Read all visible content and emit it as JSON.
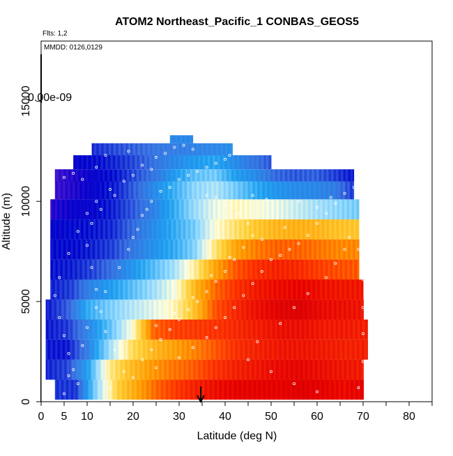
{
  "chart_data": {
    "type": "heatmap",
    "title": "ATOM2 Northeast_Pacific_1 CONBAS_GEOS5",
    "annotations": {
      "flights": "Flts: 1,2",
      "dates": "MMDD: 0126,0129",
      "colorbar_label": "0.00e-09"
    },
    "xlabel": "Latitude (deg N)",
    "ylabel": "Altitude (m)",
    "xlim": [
      0,
      85
    ],
    "ylim": [
      0,
      18000
    ],
    "x_ticks": [
      0,
      5,
      10,
      20,
      30,
      40,
      50,
      60,
      70,
      80
    ],
    "x_minor_ticks": [
      0,
      5,
      10,
      15,
      20,
      25,
      30,
      35,
      40,
      45,
      50,
      55,
      60,
      65,
      70,
      75,
      80,
      85
    ],
    "y_ticks": [
      0,
      5000,
      10000,
      15000
    ],
    "grid": false,
    "marker_latitude": 34.7,
    "color_scale": [
      "#6a1fd0",
      "#0000cc",
      "#3a6fe0",
      "#1ea0f0",
      "#8fd8ff",
      "#ffffe0",
      "#ffd23c",
      "#ff9a00",
      "#ff3c00",
      "#e60000",
      "#b40000"
    ],
    "rows": [
      {
        "alt": [
          100,
          1100
        ],
        "lat": [
          3,
          70
        ],
        "v": [
          1.5,
          1.5,
          4.0,
          6.0,
          6.8,
          7.6,
          8.1,
          8.5,
          8.8,
          9.0,
          9.0,
          9.0,
          9.1,
          9.0,
          8.8,
          9.0
        ]
      },
      {
        "alt": [
          1100,
          2100
        ],
        "lat": [
          1,
          70
        ],
        "v": [
          1.3,
          1.6,
          3.0,
          5.5,
          6.4,
          7.0,
          7.4,
          7.7,
          8.2,
          8.5,
          8.7,
          8.9,
          9.0,
          8.8,
          8.7,
          8.6
        ]
      },
      {
        "alt": [
          2100,
          3100
        ],
        "lat": [
          1,
          71
        ],
        "v": [
          1.2,
          1.2,
          2.4,
          4.2,
          5.8,
          6.5,
          6.9,
          7.3,
          7.8,
          8.3,
          8.5,
          8.7,
          8.7,
          8.6,
          8.5,
          8.5
        ]
      },
      {
        "alt": [
          3100,
          4100
        ],
        "lat": [
          1,
          71
        ],
        "v": [
          1.2,
          1.5,
          2.5,
          3.6,
          5.0,
          7.6,
          8.0,
          8.1,
          8.2,
          8.4,
          8.6,
          8.8,
          8.8,
          8.6,
          8.6,
          8.5
        ]
      },
      {
        "alt": [
          4100,
          5100
        ],
        "lat": [
          1,
          70
        ],
        "v": [
          1.2,
          1.8,
          3.2,
          3.8,
          4.3,
          4.7,
          5.2,
          6.3,
          7.8,
          8.4,
          8.8,
          9.1,
          9.2,
          8.9,
          8.8,
          8.7
        ]
      },
      {
        "alt": [
          5100,
          6100
        ],
        "lat": [
          2,
          70
        ],
        "v": [
          1.3,
          1.6,
          2.5,
          3.0,
          3.6,
          4.2,
          5.0,
          6.6,
          7.6,
          8.2,
          8.6,
          8.8,
          8.9,
          8.7,
          8.6,
          8.6
        ]
      },
      {
        "alt": [
          6100,
          7100
        ],
        "lat": [
          2,
          69
        ],
        "v": [
          1.2,
          1.3,
          1.6,
          2.1,
          2.8,
          3.5,
          4.2,
          5.4,
          6.8,
          7.7,
          8.2,
          8.4,
          8.3,
          8.0,
          7.8,
          7.7
        ]
      },
      {
        "alt": [
          7100,
          8100
        ],
        "lat": [
          2,
          69
        ],
        "v": [
          1.1,
          1.1,
          1.3,
          1.6,
          2.2,
          2.7,
          3.2,
          3.9,
          5.6,
          6.8,
          7.3,
          7.6,
          7.6,
          7.4,
          7.2,
          7.2
        ]
      },
      {
        "alt": [
          8100,
          9100
        ],
        "lat": [
          2,
          69
        ],
        "v": [
          1.0,
          1.1,
          1.2,
          1.4,
          2.0,
          2.6,
          3.2,
          3.8,
          5.0,
          5.7,
          6.2,
          6.5,
          6.6,
          6.5,
          6.3,
          6.2
        ]
      },
      {
        "alt": [
          9100,
          10100
        ],
        "lat": [
          2,
          69
        ],
        "v": [
          0.6,
          0.9,
          1.0,
          1.3,
          1.8,
          2.4,
          3.2,
          4.1,
          4.8,
          5.2,
          5.0,
          4.8,
          4.5,
          4.2,
          4.0,
          3.8
        ]
      },
      {
        "alt": [
          10100,
          11000
        ],
        "lat": [
          3,
          68
        ],
        "v": [
          0.4,
          0.7,
          1.0,
          1.3,
          1.9,
          2.6,
          3.3,
          4.0,
          4.3,
          3.8,
          3.2,
          2.8,
          2.6,
          2.5,
          2.3,
          1.5
        ]
      },
      {
        "alt": [
          11000,
          11600
        ],
        "lat": [
          3,
          68
        ],
        "v": [
          0.4,
          0.7,
          1.0,
          1.2,
          1.7,
          2.2,
          2.9,
          3.6,
          3.8,
          3.0,
          2.6,
          2.0,
          1.8,
          1.9,
          1.6,
          1.2
        ]
      },
      {
        "alt": [
          11600,
          12300
        ],
        "lat": [
          7,
          50
        ],
        "v": [
          1.0,
          1.2,
          1.6,
          2.2,
          2.8,
          3.1,
          2.4,
          1.8
        ]
      },
      {
        "alt": [
          12300,
          12900
        ],
        "lat": [
          11,
          41.5
        ],
        "v": [
          1.4,
          1.8,
          2.2,
          2.4,
          2.6
        ]
      },
      {
        "alt": [
          12900,
          13300
        ],
        "lat": [
          28,
          33
        ],
        "v": [
          2.5
        ]
      }
    ],
    "observation_points": [
      [
        5,
        400
      ],
      [
        6,
        1300
      ],
      [
        9,
        2800
      ],
      [
        10,
        3700
      ],
      [
        12,
        4700
      ],
      [
        14,
        5500
      ],
      [
        17,
        6700
      ],
      [
        19,
        7600
      ],
      [
        20,
        8200
      ],
      [
        21,
        8600
      ],
      [
        22,
        9300
      ],
      [
        23,
        9600
      ],
      [
        24,
        10000
      ],
      [
        26,
        10500
      ],
      [
        28,
        10700
      ],
      [
        30,
        11100
      ],
      [
        32,
        11300
      ],
      [
        34,
        11500
      ],
      [
        36,
        11700
      ],
      [
        38,
        11900
      ],
      [
        40,
        12100
      ],
      [
        41,
        12300
      ],
      [
        29,
        12700
      ],
      [
        31,
        12800
      ],
      [
        33,
        12600
      ],
      [
        27,
        12400
      ],
      [
        25,
        12200
      ],
      [
        22,
        11800
      ],
      [
        20,
        11300
      ],
      [
        18,
        11000
      ],
      [
        15,
        10600
      ],
      [
        12,
        10000
      ],
      [
        10,
        9400
      ],
      [
        8,
        8500
      ],
      [
        6,
        7400
      ],
      [
        4,
        6200
      ],
      [
        3,
        5300
      ],
      [
        4,
        4200
      ],
      [
        5,
        3300
      ],
      [
        6,
        2400
      ],
      [
        7,
        1600
      ],
      [
        8,
        900
      ],
      [
        15,
        700
      ],
      [
        20,
        1200
      ],
      [
        25,
        1700
      ],
      [
        30,
        2200
      ],
      [
        33,
        2700
      ],
      [
        36,
        3200
      ],
      [
        38,
        3700
      ],
      [
        40,
        4200
      ],
      [
        42,
        4700
      ],
      [
        44,
        5300
      ],
      [
        46,
        5900
      ],
      [
        48,
        6500
      ],
      [
        50,
        7100
      ],
      [
        52,
        7300
      ],
      [
        54,
        7600
      ],
      [
        56,
        7900
      ],
      [
        58,
        8300
      ],
      [
        60,
        8900
      ],
      [
        62,
        9400
      ],
      [
        64,
        9900
      ],
      [
        66,
        10400
      ],
      [
        68,
        10700
      ],
      [
        70,
        9000
      ],
      [
        69,
        7600
      ],
      [
        70,
        6100
      ],
      [
        70,
        4700
      ],
      [
        70,
        3400
      ],
      [
        70,
        2000
      ],
      [
        69,
        700
      ],
      [
        60,
        500
      ],
      [
        55,
        900
      ],
      [
        50,
        1500
      ],
      [
        45,
        2100
      ],
      [
        47,
        3000
      ],
      [
        52,
        3900
      ],
      [
        55,
        4700
      ],
      [
        58,
        5400
      ],
      [
        62,
        6200
      ],
      [
        64,
        6900
      ],
      [
        66,
        7600
      ],
      [
        40,
        9800
      ],
      [
        38,
        10200
      ],
      [
        36,
        10300
      ],
      [
        43,
        9400
      ],
      [
        45,
        8900
      ],
      [
        46,
        8300
      ],
      [
        44,
        7700
      ],
      [
        42,
        7100
      ],
      [
        40,
        6500
      ],
      [
        38,
        6000
      ],
      [
        36,
        5500
      ],
      [
        34,
        5000
      ],
      [
        32,
        4600
      ],
      [
        30,
        4100
      ],
      [
        28,
        3600
      ],
      [
        26,
        3100
      ],
      [
        24,
        2600
      ],
      [
        22,
        2100
      ],
      [
        18,
        1500
      ],
      [
        16,
        2600
      ],
      [
        14,
        3500
      ],
      [
        13,
        4500
      ],
      [
        12,
        5600
      ],
      [
        11,
        6700
      ],
      [
        10,
        7800
      ],
      [
        11,
        8900
      ],
      [
        13,
        9600
      ],
      [
        16,
        10300
      ],
      [
        9,
        11100
      ],
      [
        7,
        11400
      ],
      [
        5,
        11200
      ],
      [
        12,
        11700
      ],
      [
        14,
        12300
      ],
      [
        19,
        12500
      ],
      [
        24,
        11600
      ],
      [
        46,
        10300
      ],
      [
        49,
        10100
      ],
      [
        56,
        10000
      ],
      [
        60,
        9700
      ],
      [
        63,
        10200
      ],
      [
        67,
        8200
      ],
      [
        25,
        3800
      ],
      [
        29,
        4400
      ],
      [
        33,
        5200
      ],
      [
        37,
        6300
      ],
      [
        41,
        7200
      ],
      [
        48,
        8100
      ],
      [
        53,
        8700
      ]
    ]
  }
}
